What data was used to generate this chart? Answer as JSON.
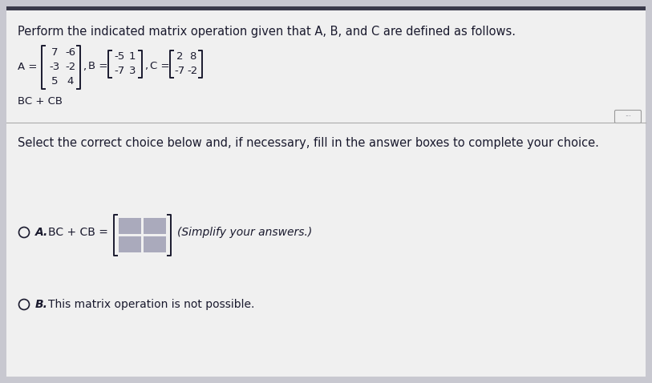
{
  "bg_color": "#c8c8d0",
  "panel_color": "#f0f0f0",
  "text_color": "#1a1a2e",
  "dark_strip_color": "#3a3a4a",
  "title_text": "Perform the indicated matrix operation given that A, B, and C are defined as follows.",
  "A_matrix": [
    [
      "7",
      "-6"
    ],
    [
      "-3",
      "-2"
    ],
    [
      "5",
      "4"
    ]
  ],
  "B_matrix": [
    [
      "-5",
      "1"
    ],
    [
      "-7",
      "3"
    ]
  ],
  "C_matrix": [
    [
      "2",
      "8"
    ],
    [
      "-7",
      "-2"
    ]
  ],
  "operation": "BC + CB",
  "select_text": "Select the correct choice below and, if necessary, fill in the answer boxes to complete your choice.",
  "choice_A_text": "BC + CB =",
  "simplify_text": "(Simplify your answers.)",
  "choice_B_text": "This matrix operation is not possible.",
  "box_fill": "#aaaabc",
  "font_size_title": 10.5,
  "font_size_body": 10,
  "font_size_matrix": 9.5
}
